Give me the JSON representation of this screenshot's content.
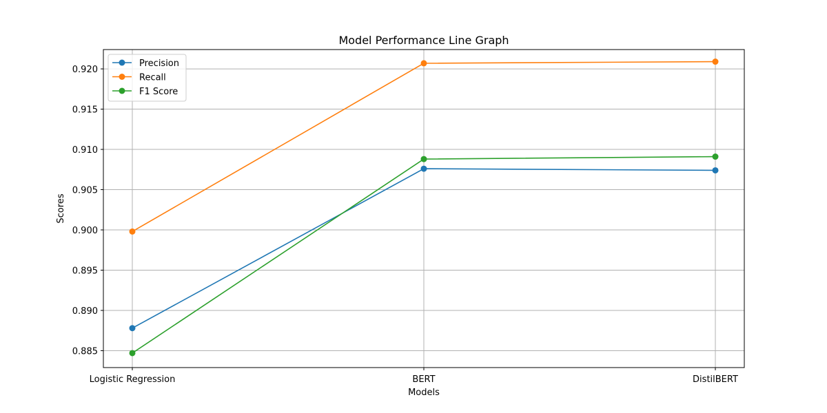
{
  "chart_data": {
    "type": "line",
    "title": "Model Performance Line Graph",
    "xlabel": "Models",
    "ylabel": "Scores",
    "categories": [
      "Logistic Regression",
      "BERT",
      "DistilBERT"
    ],
    "ylim": [
      0.8829,
      0.9224
    ],
    "yticks": [
      0.885,
      0.89,
      0.895,
      0.9,
      0.905,
      0.91,
      0.915,
      0.92
    ],
    "ytick_labels": [
      "0.885",
      "0.890",
      "0.895",
      "0.900",
      "0.905",
      "0.910",
      "0.915",
      "0.920"
    ],
    "grid": true,
    "legend_position": "top-left",
    "series": [
      {
        "name": "Precision",
        "color": "#1f77b4",
        "values": [
          0.8878,
          0.9076,
          0.9074
        ]
      },
      {
        "name": "Recall",
        "color": "#ff7f0e",
        "values": [
          0.8998,
          0.9207,
          0.9209
        ]
      },
      {
        "name": "F1 Score",
        "color": "#2ca02c",
        "values": [
          0.8847,
          0.9088,
          0.9091
        ]
      }
    ]
  }
}
